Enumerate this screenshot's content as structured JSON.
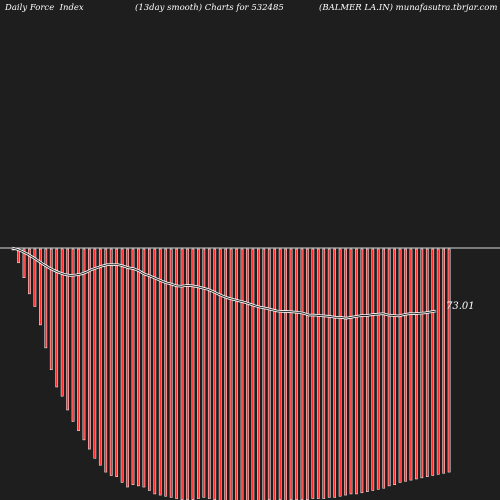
{
  "header": {
    "left": "Daily Force  Index",
    "center": "(13day smooth) Charts for 532485",
    "right": "(BALMER LA.IN) munafasutra.tbrjar.com"
  },
  "chart_data": {
    "type": "bar",
    "title": "",
    "xlabel": "",
    "ylabel": "",
    "grid": false,
    "series": [
      {
        "kind": "bar",
        "color": "#ff2a2a",
        "values": [
          -0.5,
          -12,
          -25,
          -39,
          -50,
          -66,
          -86,
          -105,
          -120,
          -128,
          -140,
          -150,
          -158,
          -166,
          -174,
          -182,
          -188,
          -194,
          -197,
          -198,
          -203,
          -207,
          -205,
          -206,
          -207,
          -210,
          -213,
          -214,
          -215,
          -216,
          -217,
          -218,
          -218,
          -218,
          -217,
          -216,
          -217,
          -218,
          -219,
          -219,
          -220,
          -220,
          -220,
          -221,
          -220,
          -219,
          -219,
          -218,
          -219,
          -218,
          -219,
          -218,
          -218,
          -218,
          -218,
          -217,
          -217,
          -217,
          -216,
          -216,
          -215,
          -214,
          -213,
          -213,
          -212,
          -211,
          -210,
          -209,
          -208,
          -206,
          -205,
          -203,
          -202,
          -201,
          -200,
          -199,
          -198,
          -197,
          -196,
          -195,
          -194
        ]
      },
      {
        "kind": "line",
        "color": "#ffffff",
        "last_value": "73.01",
        "values": [
          0,
          -3,
          -8,
          -14,
          -21,
          -29,
          -37,
          -44,
          -50,
          -55,
          -59,
          -61,
          -60,
          -58,
          -54,
          -48,
          -44,
          -40,
          -37,
          -37,
          -37,
          -40,
          -44,
          -46,
          -51,
          -58,
          -62,
          -67,
          -72,
          -77,
          -80,
          -84,
          -85,
          -83,
          -84,
          -86,
          -89,
          -92,
          -97,
          -103,
          -108,
          -112,
          -115,
          -118,
          -121,
          -125,
          -129,
          -132,
          -134,
          -137,
          -140,
          -141,
          -141,
          -142,
          -143,
          -145,
          -149,
          -149,
          -150,
          -151,
          -152,
          -154,
          -154,
          -156,
          -154,
          -152,
          -150,
          -150,
          -148,
          -147,
          -146,
          -149,
          -150,
          -151,
          -148,
          -146,
          -146,
          -145,
          -144,
          -142,
          -140
        ]
      }
    ]
  }
}
